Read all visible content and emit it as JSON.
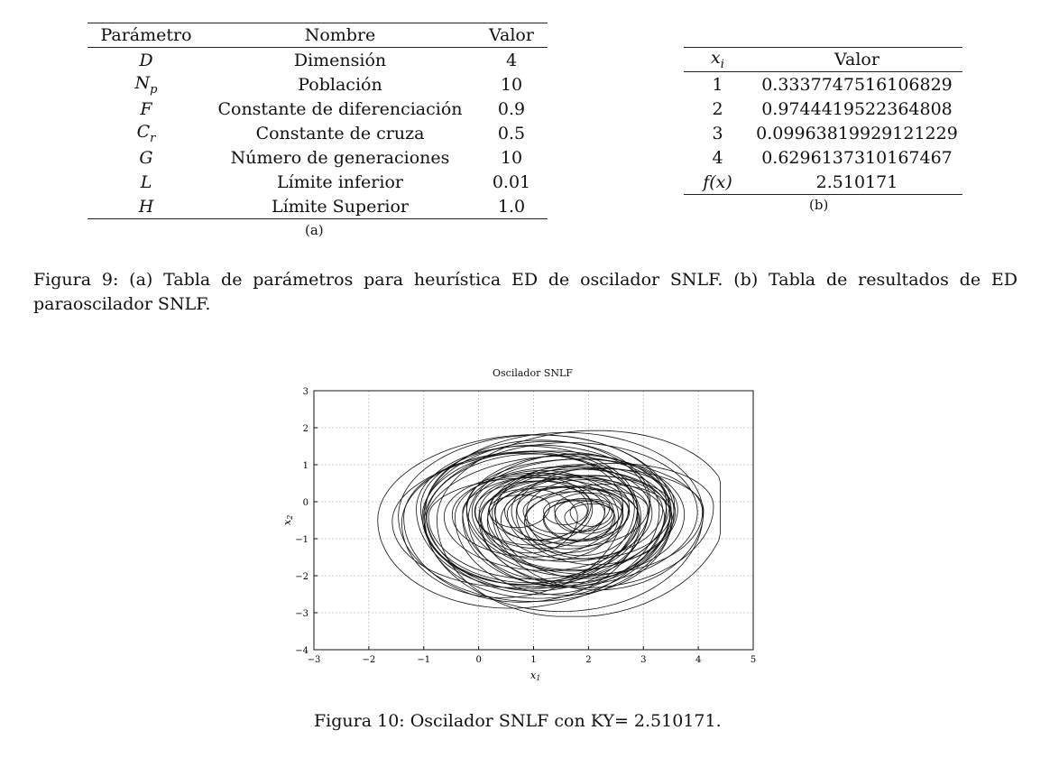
{
  "table_a": {
    "headers": [
      "Parámetro",
      "Nombre",
      "Valor"
    ],
    "rows": [
      {
        "param": "D",
        "sub": "",
        "name": "Dimensión",
        "value": "4"
      },
      {
        "param": "N",
        "sub": "p",
        "name": "Población",
        "value": "10"
      },
      {
        "param": "F",
        "sub": "",
        "name": "Constante de diferenciación",
        "value": "0.9"
      },
      {
        "param": "C",
        "sub": "r",
        "name": "Constante de cruza",
        "value": "0.5"
      },
      {
        "param": "G",
        "sub": "",
        "name": "Número de generaciones",
        "value": "10"
      },
      {
        "param": "L",
        "sub": "",
        "name": "Límite inferior",
        "value": "0.01"
      },
      {
        "param": "H",
        "sub": "",
        "name": "Límite Superior",
        "value": "1.0"
      }
    ],
    "caption": "(a)"
  },
  "table_b": {
    "header_var": "x",
    "header_sub": "i",
    "header_value": "Valor",
    "rows": [
      {
        "i": "1",
        "value": "0.3337747516106829"
      },
      {
        "i": "2",
        "value": "0.9744419522364808"
      },
      {
        "i": "3",
        "value": "0.09963819929121229"
      },
      {
        "i": "4",
        "value": "0.6296137310167467"
      }
    ],
    "fx_label": "f(x)",
    "fx_value": "2.510171",
    "caption": "(b)"
  },
  "figure9_caption": "Figura 9: (a) Tabla de parámetros para heurística ED de oscilador SNLF. (b) Tabla de resultados de ED paraoscilador SNLF.",
  "figure10_caption": "Figura 10: Oscilador SNLF con KY= 2.510171.",
  "chart_data": {
    "type": "line",
    "title": "Oscilador SNLF",
    "xlabel": "x1",
    "ylabel": "x2",
    "xlim": [
      -3,
      5
    ],
    "ylim": [
      -4,
      3
    ],
    "xticks": [
      "−3",
      "−2",
      "−1",
      "0",
      "1",
      "2",
      "3",
      "4",
      "5"
    ],
    "yticks": [
      "3",
      "2",
      "1",
      "0",
      "−1",
      "−2",
      "−3",
      "−4"
    ],
    "grid": true,
    "series": [
      {
        "name": "trajectory",
        "shape": "chaotic attractor",
        "x_range": [
          -2.0,
          4.4
        ],
        "y_range": [
          -3.1,
          2.3
        ]
      }
    ]
  },
  "colors": {
    "ink": "#111111",
    "grid": "#bdbdbd"
  }
}
